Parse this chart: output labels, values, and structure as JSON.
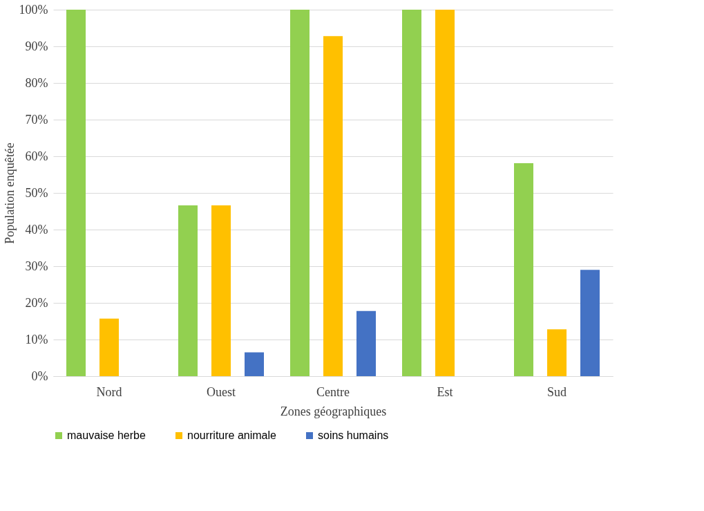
{
  "chart_data": {
    "type": "bar",
    "xlabel": "Zones géographiques",
    "ylabel": "Population enquêtée",
    "categories": [
      "Nord",
      "Ouest",
      "Centre",
      "Est",
      "Sud"
    ],
    "series": [
      {
        "name": "mauvaise herbe",
        "color": "#92d050",
        "values": [
          100,
          46.6,
          100,
          100,
          58.1
        ]
      },
      {
        "name": "nourriture animale",
        "color": "#ffc000",
        "values": [
          15.7,
          46.6,
          92.8,
          100,
          12.8
        ]
      },
      {
        "name": "soins humains",
        "color": "#4472c4",
        "values": [
          null,
          6.5,
          17.8,
          null,
          29.0
        ]
      }
    ],
    "ylim": [
      0,
      100
    ],
    "yticks": [
      {
        "value": 0,
        "label": "0%"
      },
      {
        "value": 10,
        "label": "10%"
      },
      {
        "value": 20,
        "label": "20%"
      },
      {
        "value": 30,
        "label": "30%"
      },
      {
        "value": 40,
        "label": "40%"
      },
      {
        "value": 50,
        "label": "50%"
      },
      {
        "value": 60,
        "label": "60%"
      },
      {
        "value": 70,
        "label": "70%"
      },
      {
        "value": 80,
        "label": "80%"
      },
      {
        "value": 90,
        "label": "90%"
      },
      {
        "value": 100,
        "label": "100%"
      }
    ],
    "grid": "y",
    "legend": "bottom"
  }
}
